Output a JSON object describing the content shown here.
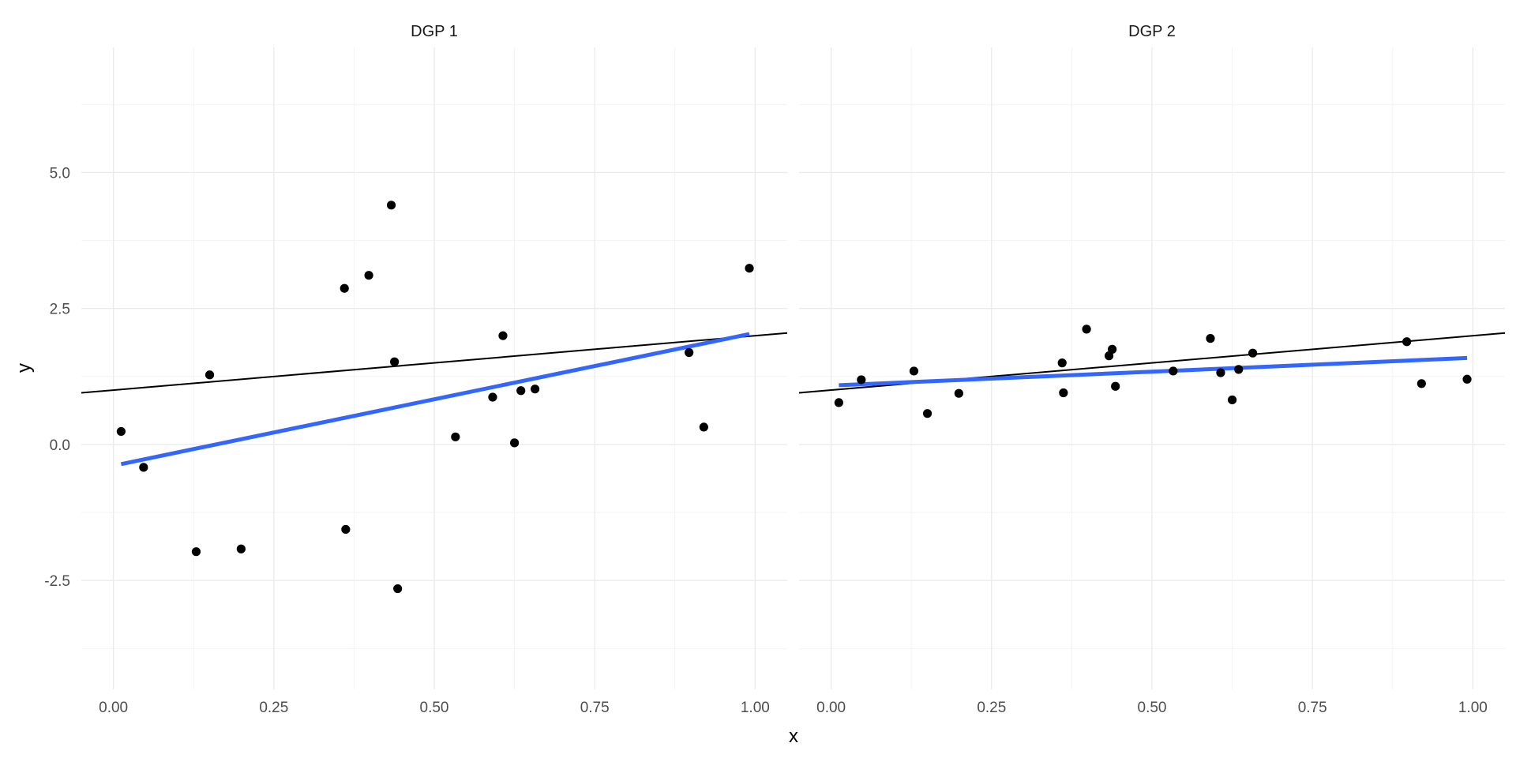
{
  "chart_data": {
    "type": "scatter",
    "xlabel": "x",
    "ylabel": "y",
    "xlim": [
      -0.05,
      1.05
    ],
    "ylim": [
      -4.5,
      7.3
    ],
    "x_ticks": [
      0.0,
      0.25,
      0.5,
      0.75,
      1.0
    ],
    "x_tick_labels": [
      "0.00",
      "0.25",
      "0.50",
      "0.75",
      "1.00"
    ],
    "y_ticks": [
      -2.5,
      0.0,
      2.5,
      5.0
    ],
    "y_tick_labels": [
      "-2.5",
      "0.0",
      "2.5",
      "5.0"
    ],
    "grid": true,
    "colors": {
      "points": "#000000",
      "true_line": "#000000",
      "fit_line": "#3366FF"
    },
    "panels": [
      {
        "title": "DGP 1",
        "points": [
          {
            "x": 0.012,
            "y": 0.24
          },
          {
            "x": 0.047,
            "y": -0.42
          },
          {
            "x": 0.129,
            "y": -1.97
          },
          {
            "x": 0.15,
            "y": 1.28
          },
          {
            "x": 0.199,
            "y": -1.92
          },
          {
            "x": 0.36,
            "y": 2.87
          },
          {
            "x": 0.362,
            "y": -1.56
          },
          {
            "x": 0.398,
            "y": 3.11
          },
          {
            "x": 0.433,
            "y": 4.4
          },
          {
            "x": 0.438,
            "y": 1.52
          },
          {
            "x": 0.443,
            "y": -2.65
          },
          {
            "x": 0.533,
            "y": 0.14
          },
          {
            "x": 0.591,
            "y": 0.87
          },
          {
            "x": 0.607,
            "y": 2.0
          },
          {
            "x": 0.625,
            "y": 0.03
          },
          {
            "x": 0.635,
            "y": 0.99
          },
          {
            "x": 0.657,
            "y": 1.02
          },
          {
            "x": 0.897,
            "y": 1.69
          },
          {
            "x": 0.92,
            "y": 0.32
          },
          {
            "x": 0.991,
            "y": 3.24
          }
        ],
        "true_line": {
          "x": [
            -0.05,
            1.05
          ],
          "y": [
            0.95,
            2.05
          ]
        },
        "fit_line": {
          "x": [
            0.012,
            0.991
          ],
          "y": [
            -0.36,
            2.03
          ]
        }
      },
      {
        "title": "DGP 2",
        "points": [
          {
            "x": 0.012,
            "y": 0.77
          },
          {
            "x": 0.047,
            "y": 1.19
          },
          {
            "x": 0.129,
            "y": 1.35
          },
          {
            "x": 0.15,
            "y": 0.57
          },
          {
            "x": 0.199,
            "y": 0.94
          },
          {
            "x": 0.36,
            "y": 1.5
          },
          {
            "x": 0.362,
            "y": 0.95
          },
          {
            "x": 0.398,
            "y": 2.12
          },
          {
            "x": 0.433,
            "y": 1.63
          },
          {
            "x": 0.438,
            "y": 1.75
          },
          {
            "x": 0.443,
            "y": 1.07
          },
          {
            "x": 0.533,
            "y": 1.35
          },
          {
            "x": 0.591,
            "y": 1.95
          },
          {
            "x": 0.607,
            "y": 1.32
          },
          {
            "x": 0.625,
            "y": 0.82
          },
          {
            "x": 0.635,
            "y": 1.38
          },
          {
            "x": 0.657,
            "y": 1.68
          },
          {
            "x": 0.897,
            "y": 1.89
          },
          {
            "x": 0.92,
            "y": 1.12
          },
          {
            "x": 0.991,
            "y": 1.2
          }
        ],
        "true_line": {
          "x": [
            -0.05,
            1.05
          ],
          "y": [
            0.95,
            2.05
          ]
        },
        "fit_line": {
          "x": [
            0.012,
            0.991
          ],
          "y": [
            1.09,
            1.59
          ]
        }
      }
    ]
  }
}
